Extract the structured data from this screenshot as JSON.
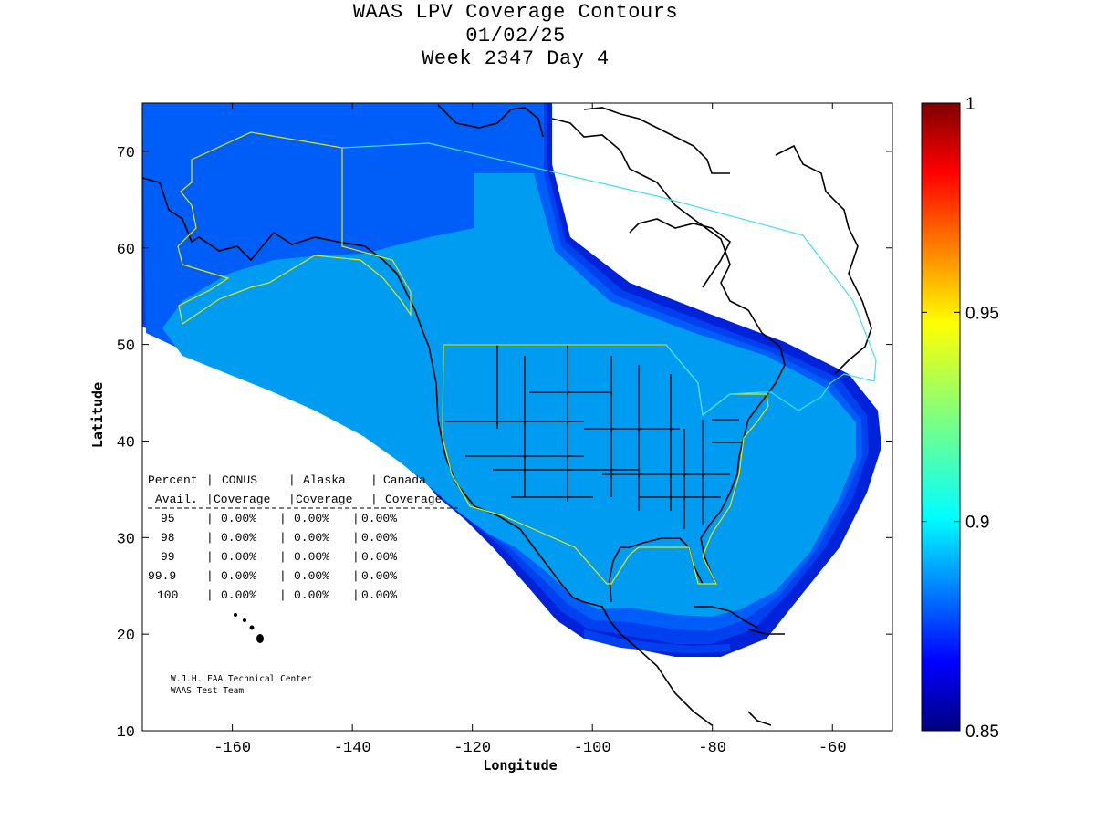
{
  "title": {
    "line1": "WAAS LPV Coverage Contours",
    "line2": "01/02/25",
    "line3": "Week 2347 Day 4"
  },
  "axes": {
    "xlabel": "Longitude",
    "ylabel": "Latitude",
    "xlim": [
      -175,
      -50
    ],
    "ylim": [
      10,
      75
    ],
    "xticks": [
      "-160",
      "-140",
      "-120",
      "-100",
      "-80",
      "-60"
    ],
    "yticks": [
      "10",
      "20",
      "30",
      "40",
      "50",
      "60",
      "70"
    ]
  },
  "colorbar": {
    "min": 0.85,
    "max": 1,
    "ticks": [
      "1",
      "0.95",
      "0.9",
      "0.85"
    ]
  },
  "coverage_table": {
    "header1": [
      "Percent",
      "CONUS",
      "Alaska",
      "Canada"
    ],
    "header2": [
      "Avail.",
      "Coverage",
      "Coverage",
      "Coverage"
    ],
    "rows": [
      [
        "95",
        "0.00%",
        "0.00%",
        "0.00%"
      ],
      [
        "98",
        "0.00%",
        "0.00%",
        "0.00%"
      ],
      [
        "99",
        "0.00%",
        "0.00%",
        "0.00%"
      ],
      [
        "99.9",
        "0.00%",
        "0.00%",
        "0.00%"
      ],
      [
        "100",
        "0.00%",
        "0.00%",
        "0.00%"
      ]
    ]
  },
  "credits": {
    "line1": "W.J.H. FAA Technical Center",
    "line2": "WAAS Test Team"
  },
  "colors": {
    "level_outer": "#0022d8",
    "level_mid1": "#0040ee",
    "level_mid2": "#005ef8",
    "level_main": "#009cf2",
    "region_border_conus": "#e8e800",
    "region_border_canada": "#40e0f0",
    "coastline": "#000000"
  }
}
